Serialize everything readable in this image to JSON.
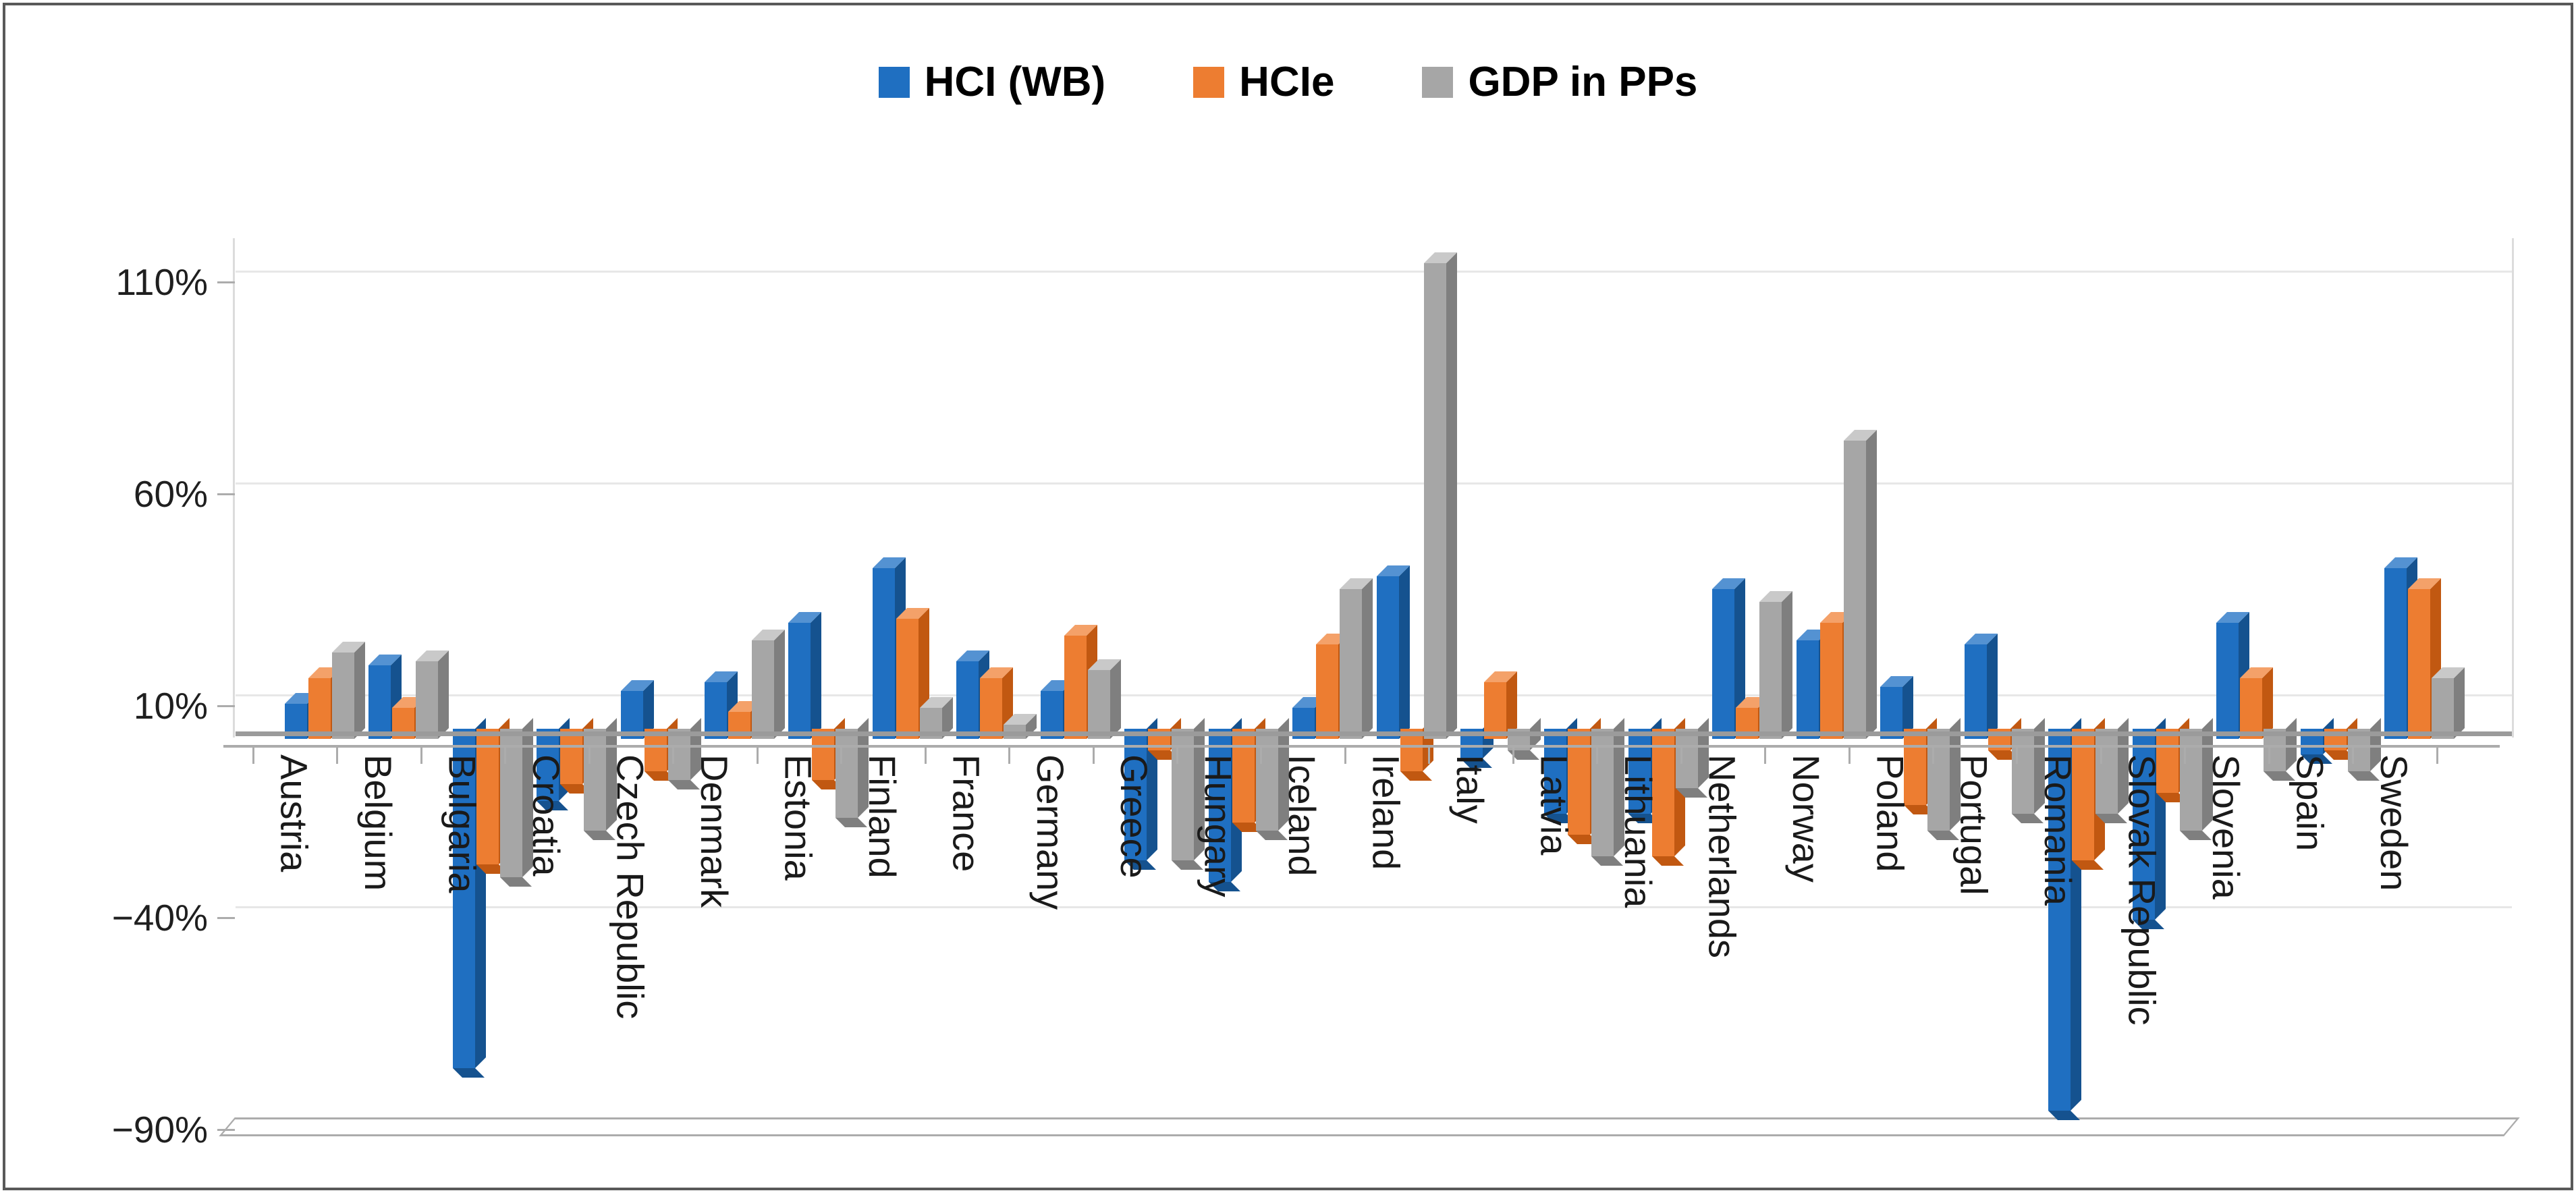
{
  "chart_data": {
    "type": "bar",
    "title": "",
    "xlabel": "",
    "ylabel": "",
    "value_format": "percent",
    "grid": true,
    "legend_position": "top-center",
    "ylim": [
      -90,
      110
    ],
    "y_ticks": [
      {
        "label": "110%",
        "value": 110
      },
      {
        "label": "60%",
        "value": 60
      },
      {
        "label": "10%",
        "value": 10
      },
      {
        "label": "−40%",
        "value": -40
      },
      {
        "label": "−90%",
        "value": -90
      }
    ],
    "categories": [
      "Austria",
      "Belgium",
      "Bulgaria",
      "Croatia",
      "Czech Republic",
      "Denmark",
      "Estonia",
      "Finland",
      "France",
      "Germany",
      "Greece",
      "Hungary",
      "Iceland",
      "Ireland",
      "Italy",
      "Latvia",
      "Lithuania",
      "Netherlands",
      "Norway",
      "Poland",
      "Portugal",
      "Romania",
      "Slovak Republic",
      "Slovenia",
      "Spain",
      "Sweden"
    ],
    "series": [
      {
        "name": "HCI (WB)",
        "color": "#1F6FC1",
        "color_top": "#5492D2",
        "color_side": "#15528F",
        "values": [
          8,
          17,
          -78,
          -15,
          11,
          13,
          27,
          40,
          18,
          11,
          -29,
          -34,
          7,
          38,
          -5,
          -18,
          -18,
          35,
          23,
          12,
          22,
          -88,
          -43,
          27,
          -4,
          40
        ]
      },
      {
        "name": "HCIe",
        "color": "#ED7D31",
        "color_top": "#F4A169",
        "color_side": "#C15811",
        "values": [
          14,
          7,
          -30,
          -11,
          -8,
          6,
          -10,
          28,
          14,
          24,
          -3,
          -20,
          22,
          -8,
          13,
          -23,
          -28,
          7,
          27,
          -16,
          -3,
          -29,
          -13,
          14,
          -3,
          35
        ]
      },
      {
        "name": "GDP in PPs",
        "color": "#A6A6A6",
        "color_top": "#C9C9C9",
        "color_side": "#7F7F7F",
        "values": [
          20,
          18,
          -33,
          -22,
          -10,
          23,
          -19,
          7,
          3,
          16,
          -29,
          -22,
          35,
          112,
          -3,
          -28,
          -12,
          32,
          70,
          -22,
          -18,
          -18,
          -22,
          -8,
          -8,
          14
        ]
      }
    ]
  }
}
